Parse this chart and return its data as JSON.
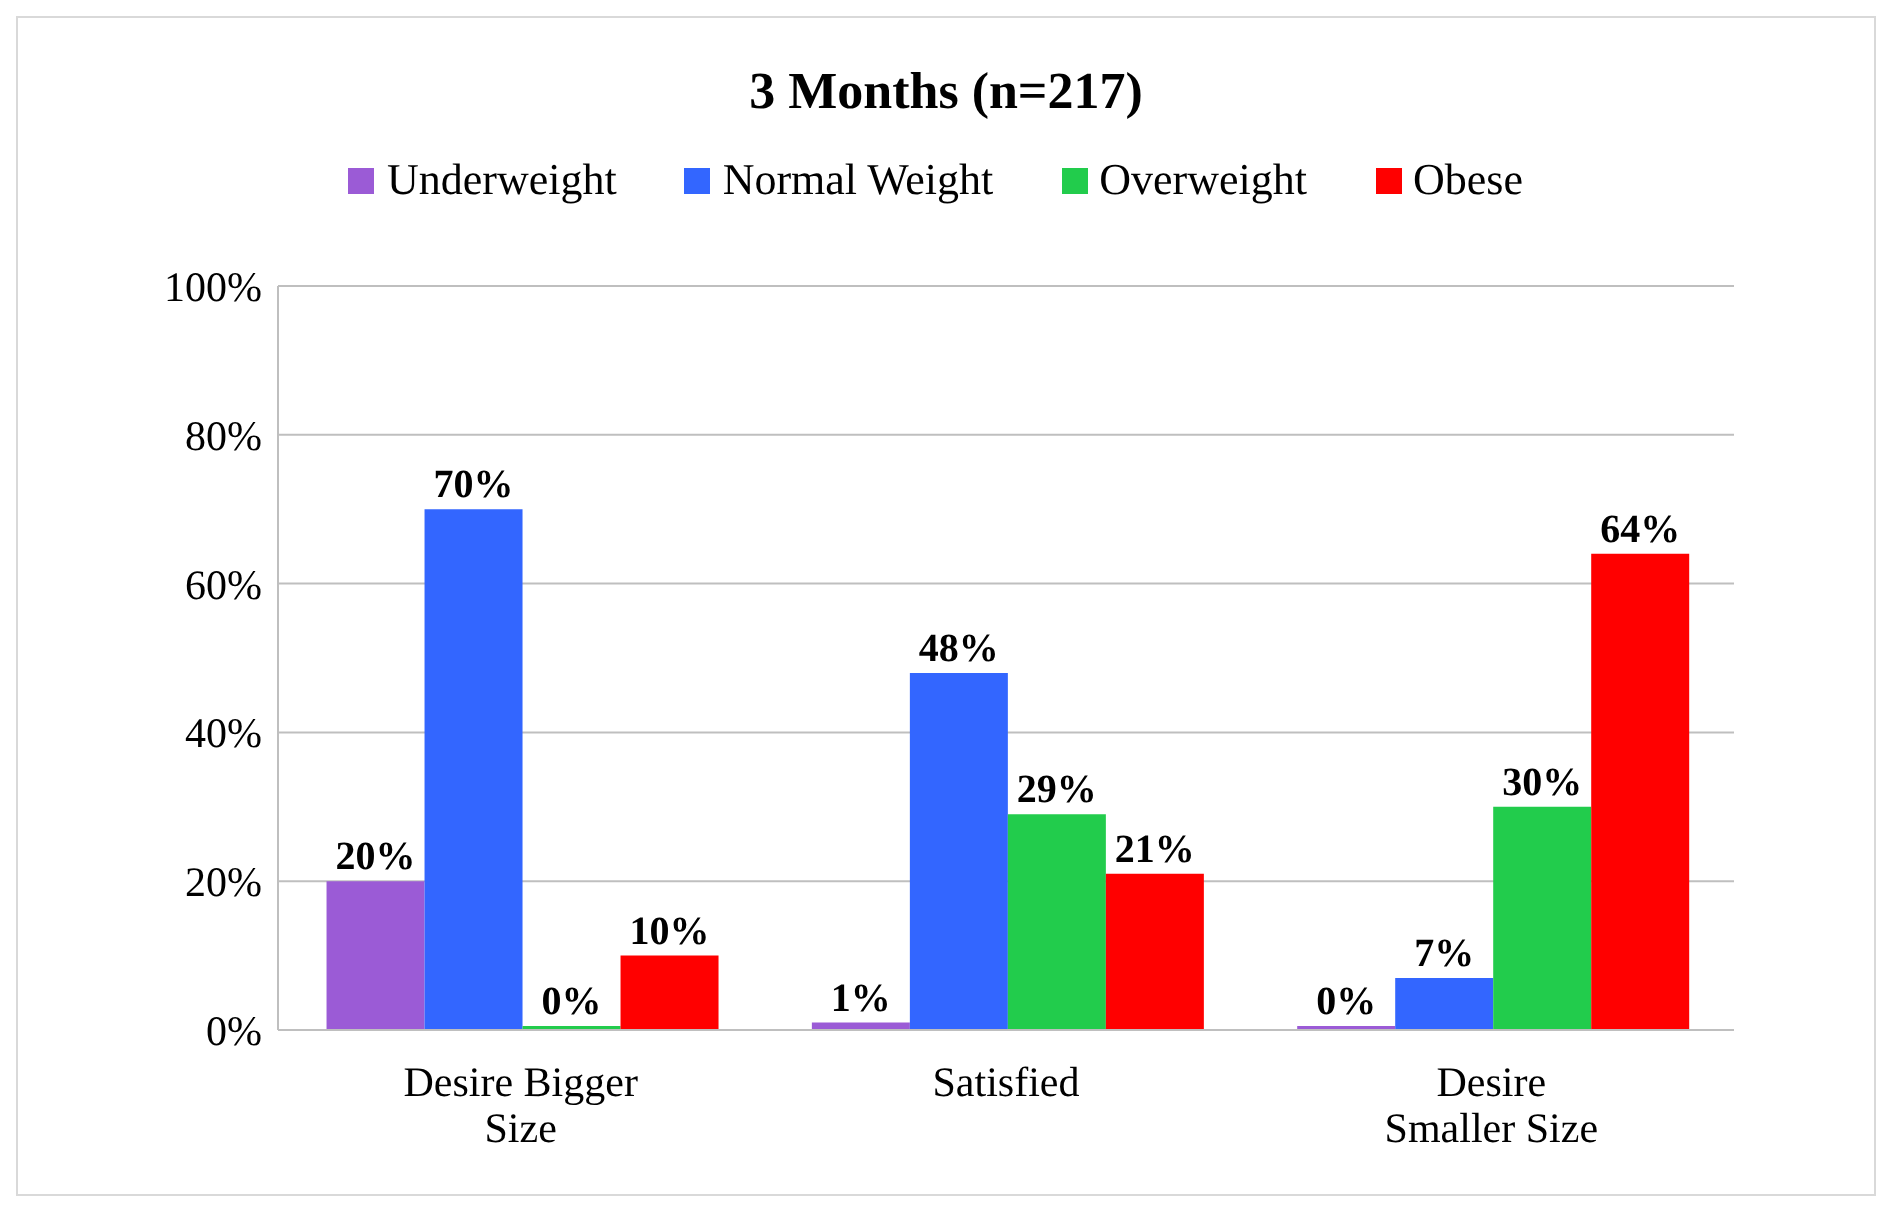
{
  "chart_data": {
    "type": "bar",
    "title": "3 Months (n=217)",
    "categories": [
      "Desire Bigger Size",
      "Satisfied",
      "Desire Smaller Size"
    ],
    "series": [
      {
        "name": "Underweight",
        "color": "#9b5bd6",
        "values": [
          20,
          1,
          0
        ],
        "value_labels": [
          "20%",
          "1%",
          "0%"
        ]
      },
      {
        "name": "Normal Weight",
        "color": "#3366ff",
        "values": [
          70,
          48,
          7
        ],
        "value_labels": [
          "70%",
          "48%",
          "7%"
        ]
      },
      {
        "name": "Overweight",
        "color": "#22cc4c",
        "values": [
          0,
          29,
          30
        ],
        "value_labels": [
          "0%",
          "29%",
          "30%"
        ]
      },
      {
        "name": "Obese",
        "color": "#ff0000",
        "values": [
          10,
          21,
          64
        ],
        "value_labels": [
          "10%",
          "21%",
          "64%"
        ]
      }
    ],
    "ylim": [
      0,
      100
    ],
    "yticks": [
      {
        "value": 0,
        "label": "0%"
      },
      {
        "value": 20,
        "label": "20%"
      },
      {
        "value": 40,
        "label": "40%"
      },
      {
        "value": 60,
        "label": "60%"
      },
      {
        "value": 80,
        "label": "80%"
      },
      {
        "value": 100,
        "label": "100%"
      }
    ],
    "grid": "y",
    "legend": "top"
  }
}
